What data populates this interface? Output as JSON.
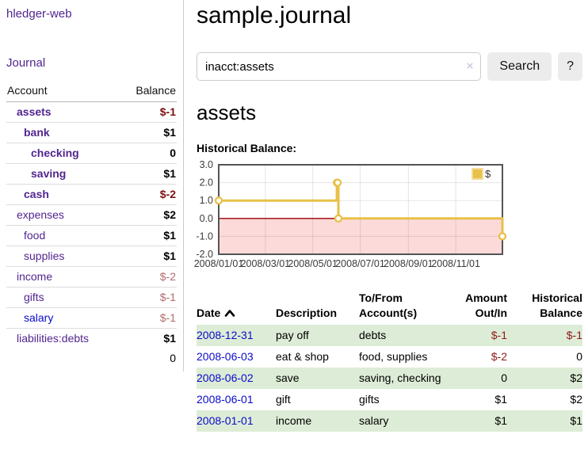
{
  "app": {
    "title": "hledger-web",
    "nav_journal": "Journal"
  },
  "header": {
    "title": "sample.journal"
  },
  "search": {
    "value": "inacct:assets",
    "placeholder": "",
    "clear_icon": "×",
    "button_label": "Search",
    "help_button_label": "?"
  },
  "sidebar": {
    "accounts_header": {
      "account": "Account",
      "balance": "Balance"
    },
    "accounts": [
      {
        "name": "assets",
        "balance": "$-1",
        "level": 1,
        "emphasized": true
      },
      {
        "name": "bank",
        "balance": "$1",
        "level": 2,
        "emphasized": true
      },
      {
        "name": "checking",
        "balance": "0",
        "level": 3,
        "emphasized": true
      },
      {
        "name": "saving",
        "balance": "$1",
        "level": 3,
        "emphasized": true
      },
      {
        "name": "cash",
        "balance": "$-2",
        "level": 2,
        "emphasized": true
      },
      {
        "name": "expenses",
        "balance": "$2",
        "level": 1,
        "emphasized": false
      },
      {
        "name": "food",
        "balance": "$1",
        "level": 2,
        "emphasized": false
      },
      {
        "name": "supplies",
        "balance": "$1",
        "level": 2,
        "emphasized": false
      },
      {
        "name": "income",
        "balance": "$-2",
        "level": 1,
        "emphasized": false
      },
      {
        "name": "gifts",
        "balance": "$-1",
        "level": 2,
        "emphasized": false
      },
      {
        "name": "salary",
        "balance": "$-1",
        "level": 2,
        "emphasized": false,
        "unvisited": true
      },
      {
        "name": "liabilities:debts",
        "balance": "$1",
        "level": 1,
        "emphasized": false
      }
    ],
    "total": "0"
  },
  "account_page": {
    "heading": "assets",
    "chart_label": "Historical Balance:"
  },
  "chart_data": {
    "type": "line",
    "step": true,
    "title": "Historical Balance:",
    "series": [
      {
        "name": "$",
        "color": "#e8c04a",
        "points": [
          [
            "2008-01-01",
            1
          ],
          [
            "2008-06-01",
            2
          ],
          [
            "2008-06-02",
            2
          ],
          [
            "2008-06-03",
            0
          ],
          [
            "2008-12-31",
            -1
          ]
        ]
      }
    ],
    "x_range": [
      "2008-01-01",
      "2008-12-31"
    ],
    "ylim": [
      -2,
      3
    ],
    "y_ticks": [
      3.0,
      2.0,
      1.0,
      0.0,
      -1.0,
      -2.0
    ],
    "x_ticks": [
      "2008/01/01",
      "2008/03/01",
      "2008/05/01",
      "2008/07/01",
      "2008/09/01",
      "2008/11/01"
    ],
    "legend": {
      "label": "$",
      "position": "top-right"
    },
    "grid": true,
    "negative_region_color": "#fcdada",
    "zero_line_color": "#a00000",
    "border_color": "#545454"
  },
  "register": {
    "columns": [
      "Date",
      "Description",
      "To/From Account(s)",
      "Amount Out/In",
      "Historical Balance"
    ],
    "sort": {
      "column": "Date",
      "direction": "ascending"
    },
    "rows": [
      {
        "date": "2008-12-31",
        "description": "pay off",
        "accounts": "debts",
        "amount": "$-1",
        "balance": "$-1"
      },
      {
        "date": "2008-06-03",
        "description": "eat & shop",
        "accounts": "food, supplies",
        "amount": "$-2",
        "balance": "0"
      },
      {
        "date": "2008-06-02",
        "description": "save",
        "accounts": "saving, checking",
        "amount": "0",
        "balance": "$2"
      },
      {
        "date": "2008-06-01",
        "description": "gift",
        "accounts": "gifts",
        "amount": "$1",
        "balance": "$2"
      },
      {
        "date": "2008-01-01",
        "description": "income",
        "accounts": "salary",
        "amount": "$1",
        "balance": "$1"
      }
    ]
  }
}
